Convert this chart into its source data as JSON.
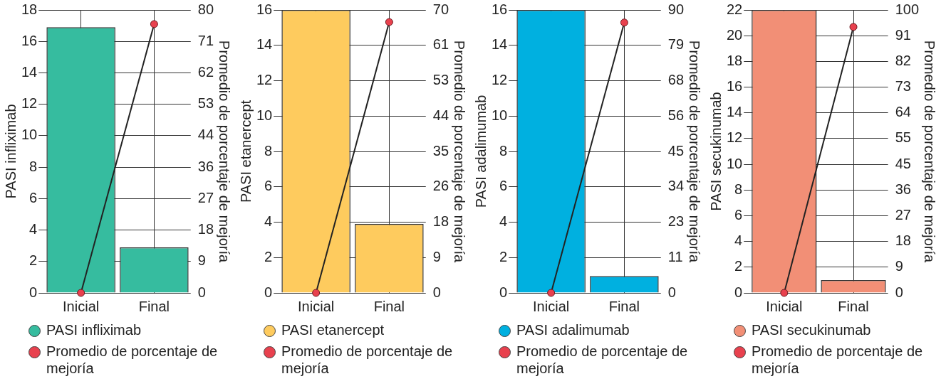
{
  "chart_data": [
    {
      "type": "bar",
      "categories": [
        "Inicial",
        "Final"
      ],
      "ylabel": "PASI infliximab",
      "y2label": "Promedio de porcentaje de mejoría",
      "ylim": [
        0,
        18
      ],
      "yticks": [
        0,
        2,
        4,
        6,
        8,
        10,
        12,
        14,
        16,
        18
      ],
      "y2lim": [
        0,
        80
      ],
      "y2ticks": [
        0,
        {
          "value": 8.89,
          "label": "9"
        },
        {
          "value": 17.78,
          "label": "18"
        },
        {
          "value": 26.67,
          "label": "27"
        },
        {
          "value": 35.56,
          "label": "36"
        },
        {
          "value": 44.44,
          "label": "44"
        },
        {
          "value": 53.33,
          "label": "53"
        },
        {
          "value": 62.22,
          "label": "62"
        },
        {
          "value": 71.11,
          "label": "71"
        },
        80
      ],
      "grid": true,
      "legend": "bottom",
      "marker": "circle",
      "series": [
        {
          "name": "PASI infliximab",
          "color": "#36bc9f",
          "values": [
            16.9,
            2.9
          ]
        },
        {
          "name": "Promedio de porcentaje de mejoría",
          "type": "line",
          "axis": "y2",
          "color": "#e8414e",
          "values": [
            0,
            76
          ]
        }
      ]
    },
    {
      "type": "bar",
      "categories": [
        "Inicial",
        "Final"
      ],
      "ylabel": "PASI etanercept",
      "y2label": "Promedio de porcentaje de mejoría",
      "ylim": [
        0,
        16
      ],
      "yticks": [
        0,
        2,
        4,
        6,
        8,
        10,
        12,
        14,
        16
      ],
      "y2lim": [
        0,
        70
      ],
      "y2ticks": [
        0,
        {
          "value": 8.75,
          "label": "9"
        },
        {
          "value": 17.5,
          "label": "18"
        },
        {
          "value": 26.25,
          "label": "26"
        },
        35,
        {
          "value": 43.75,
          "label": "44"
        },
        {
          "value": 52.5,
          "label": "53"
        },
        {
          "value": 61.25,
          "label": "61"
        },
        70
      ],
      "grid": true,
      "legend": "bottom",
      "marker": "circle",
      "series": [
        {
          "name": "PASI etanercept",
          "color": "#fecb5e",
          "values": [
            16,
            3.9
          ]
        },
        {
          "name": "Promedio de porcentaje de mejoría",
          "type": "line",
          "axis": "y2",
          "color": "#e8414e",
          "values": [
            0,
            67
          ]
        }
      ]
    },
    {
      "type": "bar",
      "categories": [
        "Inicial",
        "Final"
      ],
      "ylabel": "PASI adalimumab",
      "y2label": "Promedio de porcentaje de mejoría",
      "ylim": [
        0,
        16
      ],
      "yticks": [
        0,
        2,
        4,
        6,
        8,
        10,
        12,
        14,
        16
      ],
      "y2lim": [
        0,
        90
      ],
      "y2ticks": [
        0,
        {
          "value": 11.25,
          "label": "11"
        },
        {
          "value": 22.5,
          "label": "23"
        },
        {
          "value": 33.75,
          "label": "34"
        },
        45,
        {
          "value": 56.25,
          "label": "56"
        },
        {
          "value": 67.5,
          "label": "68"
        },
        {
          "value": 78.75,
          "label": "79"
        },
        90
      ],
      "grid": true,
      "legend": "bottom",
      "marker": "circle",
      "series": [
        {
          "name": "PASI adalimumab",
          "color": "#00b0e0",
          "values": [
            16,
            0.95
          ]
        },
        {
          "name": "Promedio de porcentaje de mejoría",
          "type": "line",
          "axis": "y2",
          "color": "#e8414e",
          "values": [
            0,
            86
          ]
        }
      ]
    },
    {
      "type": "bar",
      "categories": [
        "Inicial",
        "Final"
      ],
      "ylabel": "PASI secukinumab",
      "y2label": "Promedio de porcentaje de mejoría",
      "ylim": [
        0,
        22
      ],
      "yticks": [
        0,
        2,
        4,
        6,
        8,
        10,
        12,
        14,
        16,
        18,
        20,
        22
      ],
      "y2lim": [
        0,
        100
      ],
      "y2ticks": [
        0,
        {
          "value": 9.09,
          "label": "9"
        },
        {
          "value": 18.18,
          "label": "18"
        },
        {
          "value": 27.27,
          "label": "27"
        },
        {
          "value": 36.36,
          "label": "36"
        },
        {
          "value": 45.45,
          "label": "45"
        },
        {
          "value": 54.55,
          "label": "55"
        },
        {
          "value": 63.64,
          "label": "64"
        },
        {
          "value": 72.73,
          "label": "73"
        },
        {
          "value": 81.82,
          "label": "82"
        },
        {
          "value": 90.91,
          "label": "91"
        },
        100
      ],
      "grid": true,
      "legend": "bottom",
      "marker": "circle",
      "series": [
        {
          "name": "PASI secukinumab",
          "color": "#f28f76",
          "values": [
            22,
            1
          ]
        },
        {
          "name": "Promedio de porcentaje de mejoría",
          "type": "line",
          "axis": "y2",
          "color": "#e8414e",
          "values": [
            0,
            94
          ]
        }
      ]
    }
  ]
}
